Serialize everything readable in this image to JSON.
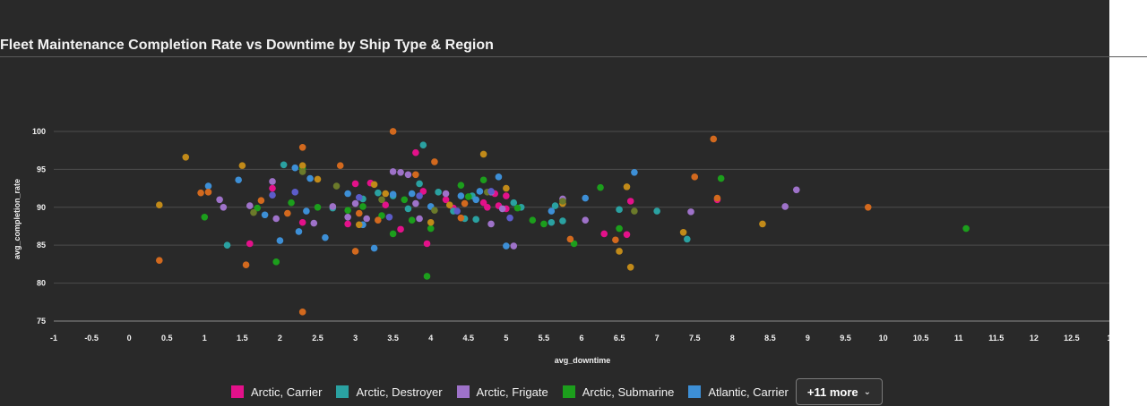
{
  "page": {
    "title": "Fleet Maintenance Completion Rate vs Downtime by Ship Type & Region"
  },
  "legend": {
    "items": [
      {
        "label": "Arctic, Carrier",
        "color": "#e3118a"
      },
      {
        "label": "Arctic, Destroyer",
        "color": "#2aa1a1"
      },
      {
        "label": "Arctic, Frigate",
        "color": "#9e72c9"
      },
      {
        "label": "Arctic, Submarine",
        "color": "#1c9e1c"
      },
      {
        "label": "Atlantic, Carrier",
        "color": "#3d8fd6"
      }
    ],
    "more_label": "+11 more",
    "more_icon": "chevron-down-icon"
  },
  "chart_data": {
    "type": "scatter",
    "title": "Fleet Maintenance Completion Rate vs Downtime by Ship Type & Region",
    "xlabel": "avg_downtime",
    "ylabel": "avg_completion_rate",
    "xlim": [
      -1,
      13
    ],
    "ylim": [
      75,
      102
    ],
    "x_ticks": [
      "-1",
      "-0.5",
      "0",
      "0.5",
      "1",
      "1.5",
      "2",
      "2.5",
      "3",
      "3.5",
      "4",
      "4.5",
      "5",
      "5.5",
      "6",
      "6.5",
      "7",
      "7.5",
      "8",
      "8.5",
      "9",
      "9.5",
      "10",
      "10.5",
      "11",
      "11.5",
      "12",
      "12.5",
      "1"
    ],
    "y_ticks": [
      "75",
      "80",
      "85",
      "90",
      "95",
      "100"
    ],
    "grid": "horizontal",
    "legend_position": "bottom",
    "series": [
      {
        "name": "Arctic, Carrier",
        "color": "#e3118a",
        "points": [
          [
            1.6,
            85.2
          ],
          [
            1.9,
            92.5
          ],
          [
            2.3,
            88.0
          ],
          [
            3.0,
            93.1
          ],
          [
            3.2,
            93.2
          ],
          [
            3.4,
            90.3
          ],
          [
            3.8,
            97.2
          ],
          [
            3.9,
            92.1
          ],
          [
            3.95,
            85.2
          ],
          [
            4.2,
            91.0
          ],
          [
            4.3,
            89.9
          ],
          [
            4.7,
            90.6
          ],
          [
            4.9,
            90.2
          ],
          [
            5.0,
            89.8
          ],
          [
            5.0,
            91.5
          ],
          [
            6.3,
            86.5
          ],
          [
            6.6,
            86.4
          ],
          [
            6.65,
            90.8
          ],
          [
            7.8,
            91.0
          ],
          [
            3.6,
            87.1
          ],
          [
            2.9,
            87.8
          ],
          [
            4.85,
            91.8
          ],
          [
            4.75,
            90.0
          ]
        ]
      },
      {
        "name": "Arctic, Destroyer",
        "color": "#2aa1a1",
        "points": [
          [
            1.3,
            85.0
          ],
          [
            2.05,
            95.6
          ],
          [
            3.1,
            91.1
          ],
          [
            3.5,
            91.5
          ],
          [
            3.85,
            93.1
          ],
          [
            3.9,
            98.2
          ],
          [
            4.1,
            92.0
          ],
          [
            4.3,
            89.5
          ],
          [
            4.6,
            88.4
          ],
          [
            5.1,
            90.6
          ],
          [
            5.2,
            90.0
          ],
          [
            5.6,
            88.0
          ],
          [
            5.75,
            88.2
          ],
          [
            6.5,
            89.7
          ],
          [
            7.0,
            89.5
          ],
          [
            7.4,
            85.8
          ],
          [
            3.7,
            89.8
          ],
          [
            4.55,
            91.5
          ],
          [
            4.45,
            88.5
          ],
          [
            2.7,
            89.9
          ],
          [
            3.3,
            91.9
          ],
          [
            5.65,
            90.2
          ]
        ]
      },
      {
        "name": "Arctic, Frigate",
        "color": "#9e72c9",
        "points": [
          [
            1.2,
            91.0
          ],
          [
            1.25,
            90.0
          ],
          [
            1.6,
            90.2
          ],
          [
            1.9,
            93.4
          ],
          [
            1.95,
            88.5
          ],
          [
            2.45,
            87.9
          ],
          [
            2.9,
            88.7
          ],
          [
            3.15,
            88.5
          ],
          [
            3.5,
            94.7
          ],
          [
            3.6,
            94.6
          ],
          [
            3.7,
            94.3
          ],
          [
            3.8,
            90.5
          ],
          [
            3.85,
            88.5
          ],
          [
            4.2,
            91.8
          ],
          [
            4.8,
            92.0
          ],
          [
            4.95,
            89.8
          ],
          [
            5.1,
            84.9
          ],
          [
            5.75,
            91.1
          ],
          [
            6.05,
            88.3
          ],
          [
            7.45,
            89.4
          ],
          [
            8.7,
            90.1
          ],
          [
            8.85,
            92.3
          ],
          [
            2.7,
            90.1
          ],
          [
            3.0,
            90.5
          ],
          [
            4.8,
            87.8
          ]
        ]
      },
      {
        "name": "Arctic, Submarine",
        "color": "#1c9e1c",
        "points": [
          [
            1.0,
            88.7
          ],
          [
            1.7,
            89.9
          ],
          [
            1.95,
            82.8
          ],
          [
            2.15,
            90.6
          ],
          [
            2.3,
            95.1
          ],
          [
            2.5,
            90.0
          ],
          [
            3.1,
            90.1
          ],
          [
            3.35,
            88.9
          ],
          [
            3.5,
            86.5
          ],
          [
            3.65,
            91.0
          ],
          [
            3.75,
            88.3
          ],
          [
            3.95,
            80.9
          ],
          [
            4.4,
            92.9
          ],
          [
            4.5,
            91.4
          ],
          [
            4.7,
            93.6
          ],
          [
            5.15,
            89.9
          ],
          [
            5.5,
            87.8
          ],
          [
            5.9,
            85.2
          ],
          [
            6.25,
            92.6
          ],
          [
            6.5,
            87.2
          ],
          [
            7.85,
            93.8
          ],
          [
            11.1,
            87.2
          ],
          [
            2.9,
            89.6
          ],
          [
            4.0,
            87.2
          ],
          [
            5.35,
            88.3
          ]
        ]
      },
      {
        "name": "Atlantic, Carrier",
        "color": "#3d8fd6",
        "points": [
          [
            1.05,
            92.8
          ],
          [
            1.45,
            93.6
          ],
          [
            1.8,
            89.0
          ],
          [
            2.0,
            85.6
          ],
          [
            2.35,
            89.5
          ],
          [
            2.4,
            93.8
          ],
          [
            2.6,
            86.0
          ],
          [
            2.9,
            91.8
          ],
          [
            3.25,
            84.6
          ],
          [
            3.5,
            91.7
          ],
          [
            3.75,
            91.8
          ],
          [
            4.0,
            90.1
          ],
          [
            4.4,
            91.5
          ],
          [
            4.6,
            91.0
          ],
          [
            4.65,
            92.1
          ],
          [
            4.9,
            94.0
          ],
          [
            5.0,
            84.9
          ],
          [
            5.6,
            89.5
          ],
          [
            6.05,
            91.2
          ],
          [
            6.7,
            94.6
          ],
          [
            2.25,
            86.8
          ],
          [
            3.1,
            87.7
          ],
          [
            2.2,
            95.2
          ]
        ]
      },
      {
        "name": "",
        "color": "#c18a19",
        "points": [
          [
            0.4,
            90.3
          ],
          [
            0.75,
            96.6
          ],
          [
            1.5,
            95.5
          ],
          [
            2.3,
            95.5
          ],
          [
            2.5,
            93.7
          ],
          [
            3.05,
            87.7
          ],
          [
            3.4,
            91.8
          ],
          [
            4.0,
            88.0
          ],
          [
            4.7,
            97.0
          ],
          [
            5.0,
            92.5
          ],
          [
            5.75,
            90.5
          ],
          [
            6.5,
            84.2
          ],
          [
            6.6,
            92.7
          ],
          [
            6.65,
            82.1
          ],
          [
            7.35,
            86.7
          ],
          [
            8.4,
            87.8
          ],
          [
            3.25,
            93.0
          ],
          [
            4.25,
            90.3
          ]
        ]
      },
      {
        "name": "",
        "color": "#d2691e",
        "points": [
          [
            0.4,
            83.0
          ],
          [
            0.95,
            91.9
          ],
          [
            1.05,
            92.0
          ],
          [
            1.55,
            82.4
          ],
          [
            1.75,
            90.9
          ],
          [
            2.1,
            89.2
          ],
          [
            2.3,
            76.2
          ],
          [
            2.3,
            97.9
          ],
          [
            2.8,
            95.5
          ],
          [
            3.0,
            84.2
          ],
          [
            3.05,
            89.2
          ],
          [
            3.5,
            100.0
          ],
          [
            3.8,
            94.3
          ],
          [
            4.05,
            96.0
          ],
          [
            4.45,
            90.5
          ],
          [
            5.85,
            85.8
          ],
          [
            6.45,
            85.7
          ],
          [
            7.5,
            94.0
          ],
          [
            7.75,
            99.0
          ],
          [
            7.8,
            91.2
          ],
          [
            9.8,
            90.0
          ],
          [
            4.4,
            88.6
          ],
          [
            3.3,
            88.3
          ]
        ]
      },
      {
        "name": "",
        "color": "#6b7a2a",
        "points": [
          [
            2.3,
            94.7
          ],
          [
            2.75,
            92.8
          ],
          [
            3.35,
            91.0
          ],
          [
            4.05,
            89.6
          ],
          [
            4.75,
            92.0
          ],
          [
            5.75,
            90.8
          ],
          [
            1.65,
            89.3
          ],
          [
            6.7,
            89.5
          ]
        ]
      },
      {
        "name": "",
        "color": "#5c5cc9",
        "points": [
          [
            2.2,
            92.0
          ],
          [
            3.05,
            91.3
          ],
          [
            3.45,
            88.7
          ],
          [
            4.35,
            89.5
          ],
          [
            4.8,
            92.1
          ],
          [
            5.05,
            88.6
          ],
          [
            1.9,
            91.6
          ],
          [
            3.85,
            91.5
          ]
        ]
      }
    ]
  }
}
